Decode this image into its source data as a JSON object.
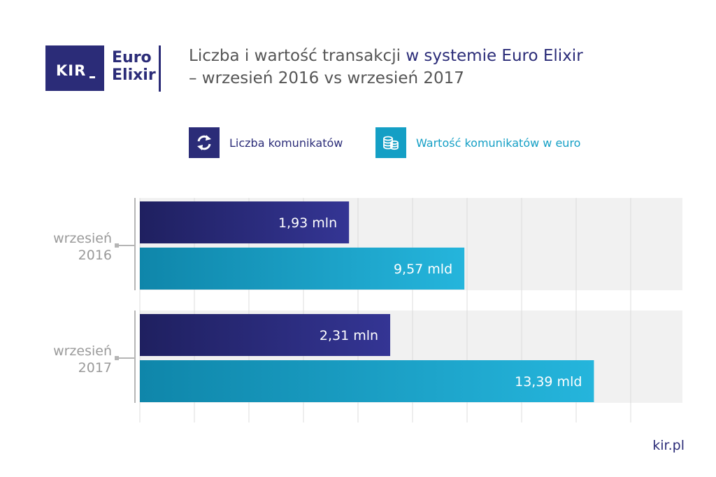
{
  "logo": {
    "kir": "KIR",
    "euro": "Euro",
    "elixir": "Elixir"
  },
  "title": {
    "line1_plain": "Liczba i wartość transakcji ",
    "line1_accent": "w systemie Euro Elixir",
    "line2": "– wrzesień 2016 vs wrzesień 2017"
  },
  "legend": [
    {
      "label": "Liczba komunikatów",
      "color": "#2b2c78",
      "icon": "arrows-exchange-icon"
    },
    {
      "label": "Wartość komunikatów w euro",
      "color": "#149fc5",
      "icon": "coins-stack-icon"
    }
  ],
  "footer": {
    "url": "kir.pl"
  },
  "colors": {
    "navy": "#2b2c78",
    "teal": "#149fc5",
    "band": "#f1f1f1",
    "grid": "#dcdcdc",
    "category_text": "#9a9a9a"
  },
  "chart_data": {
    "type": "bar",
    "orientation": "horizontal",
    "categories": [
      {
        "line1": "wrzesień",
        "line2": "2016"
      },
      {
        "line1": "wrzesień",
        "line2": "2017"
      }
    ],
    "series": [
      {
        "name": "Liczba komunikatów",
        "values": [
          1.93,
          2.31
        ],
        "unit": "mln",
        "labels": [
          "1,93 mln",
          "2,31 mln"
        ]
      },
      {
        "name": "Wartość komunikatów w euro",
        "values": [
          9.57,
          13.39
        ],
        "unit": "mld",
        "labels": [
          "9,57 mld",
          "13,39 mld"
        ]
      }
    ],
    "grid": true,
    "legend_position": "top"
  }
}
